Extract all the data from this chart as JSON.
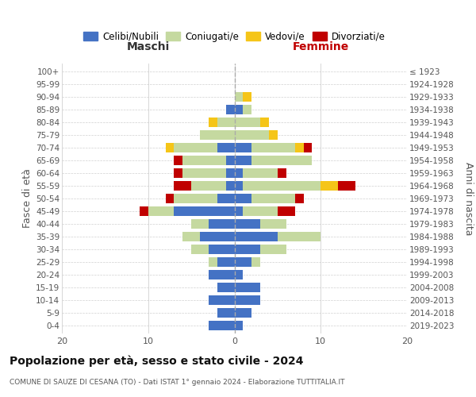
{
  "age_groups": [
    "0-4",
    "5-9",
    "10-14",
    "15-19",
    "20-24",
    "25-29",
    "30-34",
    "35-39",
    "40-44",
    "45-49",
    "50-54",
    "55-59",
    "60-64",
    "65-69",
    "70-74",
    "75-79",
    "80-84",
    "85-89",
    "90-94",
    "95-99",
    "100+"
  ],
  "birth_years": [
    "2019-2023",
    "2014-2018",
    "2009-2013",
    "2004-2008",
    "1999-2003",
    "1994-1998",
    "1989-1993",
    "1984-1988",
    "1979-1983",
    "1974-1978",
    "1969-1973",
    "1964-1968",
    "1959-1963",
    "1954-1958",
    "1949-1953",
    "1944-1948",
    "1939-1943",
    "1934-1938",
    "1929-1933",
    "1924-1928",
    "≤ 1923"
  ],
  "maschi": {
    "celibi": [
      3,
      2,
      3,
      2,
      3,
      2,
      3,
      4,
      3,
      7,
      2,
      1,
      1,
      1,
      2,
      0,
      0,
      1,
      0,
      0,
      0
    ],
    "coniugati": [
      0,
      0,
      0,
      0,
      0,
      1,
      2,
      2,
      2,
      3,
      5,
      4,
      5,
      5,
      5,
      4,
      2,
      0,
      0,
      0,
      0
    ],
    "vedovi": [
      0,
      0,
      0,
      0,
      0,
      0,
      0,
      0,
      0,
      0,
      0,
      0,
      0,
      0,
      1,
      0,
      1,
      0,
      0,
      0,
      0
    ],
    "divorziati": [
      0,
      0,
      0,
      0,
      0,
      0,
      0,
      0,
      0,
      1,
      1,
      2,
      1,
      1,
      0,
      0,
      0,
      0,
      0,
      0,
      0
    ]
  },
  "femmine": {
    "celibi": [
      1,
      2,
      3,
      3,
      1,
      2,
      3,
      5,
      3,
      1,
      2,
      1,
      1,
      2,
      2,
      0,
      0,
      1,
      0,
      0,
      0
    ],
    "coniugati": [
      0,
      0,
      0,
      0,
      0,
      1,
      3,
      5,
      3,
      4,
      5,
      9,
      4,
      7,
      5,
      4,
      3,
      1,
      1,
      0,
      0
    ],
    "vedovi": [
      0,
      0,
      0,
      0,
      0,
      0,
      0,
      0,
      0,
      0,
      0,
      2,
      0,
      0,
      1,
      1,
      1,
      0,
      1,
      0,
      0
    ],
    "divorziati": [
      0,
      0,
      0,
      0,
      0,
      0,
      0,
      0,
      0,
      2,
      1,
      2,
      1,
      0,
      1,
      0,
      0,
      0,
      0,
      0,
      0
    ]
  },
  "colors": {
    "celibi": "#4472c4",
    "coniugati": "#c5d9a0",
    "vedovi": "#f5c518",
    "divorziati": "#c00000"
  },
  "legend_labels": [
    "Celibi/Nubili",
    "Coniugati/e",
    "Vedovi/e",
    "Divorziati/e"
  ],
  "title": "Popolazione per età, sesso e stato civile - 2024",
  "subtitle": "COMUNE DI SAUZE DI CESANA (TO) - Dati ISTAT 1° gennaio 2024 - Elaborazione TUTTITALIA.IT",
  "xlabel_left": "Maschi",
  "xlabel_right": "Femmine",
  "ylabel_left": "Fasce di età",
  "ylabel_right": "Anni di nascita",
  "xlim": 20,
  "background_color": "#ffffff",
  "grid_color": "#cccccc"
}
